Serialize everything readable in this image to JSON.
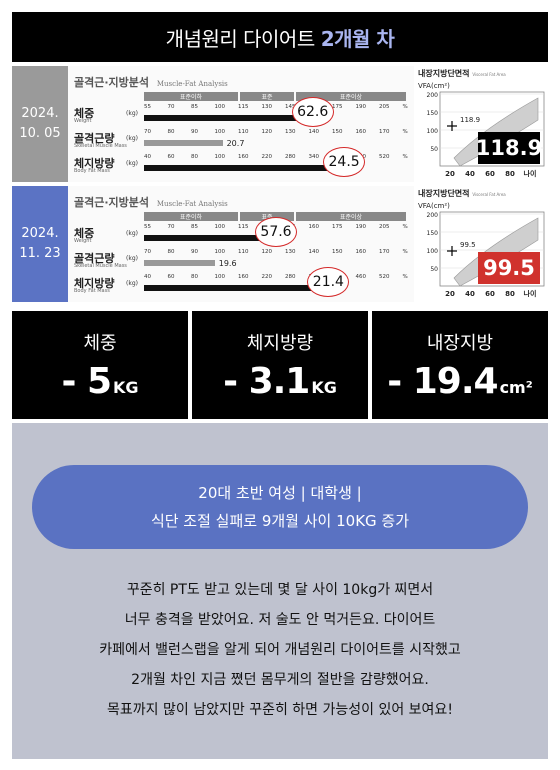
{
  "header": {
    "title": "개념원리 다이어트",
    "highlight": "2개월 차"
  },
  "records": [
    {
      "date_line1": "2024.",
      "date_line2": "10. 05",
      "title": "골격근·지방분석",
      "title_sub": "Muscle-Fat Analysis",
      "bands": [
        "표준이하",
        "표준",
        "표준이상"
      ],
      "metrics": [
        {
          "label": "체중",
          "sub": "Weight",
          "unit": "(kg)",
          "ticks": [
            "55",
            "70",
            "85",
            "100",
            "115",
            "130",
            "145",
            "160",
            "175",
            "190",
            "205",
            "%"
          ],
          "value": "62.6",
          "fill": 0.64,
          "circled": true
        },
        {
          "label": "골격근량",
          "sub": "Skeletal Muscle Mass",
          "unit": "(kg)",
          "ticks": [
            "70",
            "80",
            "90",
            "100",
            "110",
            "120",
            "130",
            "140",
            "150",
            "160",
            "170",
            "%"
          ],
          "value": "20.7",
          "fill": 0.3,
          "circled": false
        },
        {
          "label": "체지방량",
          "sub": "Body Fat Mass",
          "unit": "(kg)",
          "ticks": [
            "40",
            "60",
            "80",
            "100",
            "160",
            "220",
            "280",
            "340",
            "400",
            "460",
            "520",
            "%"
          ],
          "value": "24.5",
          "fill": 0.76,
          "circled": true
        }
      ],
      "vfa": {
        "title": "내장지방단면적",
        "title_sub": "Visceral Fat Area",
        "axis_label": "VFA(cm²)",
        "yticks": [
          "200",
          "150",
          "100",
          "50"
        ],
        "xticks": [
          "20",
          "40",
          "60",
          "80",
          "나이"
        ],
        "marker_label": "118.9",
        "badge": "118.9"
      }
    },
    {
      "date_line1": "2024.",
      "date_line2": "11. 23",
      "title": "골격근·지방분석",
      "title_sub": "Muscle-Fat Analysis",
      "bands": [
        "표준이하",
        "표준",
        "표준이상"
      ],
      "metrics": [
        {
          "label": "체중",
          "sub": "Weight",
          "unit": "(kg)",
          "ticks": [
            "55",
            "70",
            "85",
            "100",
            "115",
            "130",
            "145",
            "160",
            "175",
            "190",
            "205",
            "%"
          ],
          "value": "57.6",
          "fill": 0.5,
          "circled": true
        },
        {
          "label": "골격근량",
          "sub": "Skeletal Muscle Mass",
          "unit": "(kg)",
          "ticks": [
            "70",
            "80",
            "90",
            "100",
            "110",
            "120",
            "130",
            "140",
            "150",
            "160",
            "170",
            "%"
          ],
          "value": "19.6",
          "fill": 0.27,
          "circled": false
        },
        {
          "label": "체지방량",
          "sub": "Body Fat Mass",
          "unit": "(kg)",
          "ticks": [
            "40",
            "60",
            "80",
            "100",
            "160",
            "220",
            "280",
            "340",
            "400",
            "460",
            "520",
            "%"
          ],
          "value": "21.4",
          "fill": 0.7,
          "circled": true
        }
      ],
      "vfa": {
        "title": "내장지방단면적",
        "title_sub": "Visceral Fat Area",
        "axis_label": "VFA(cm²)",
        "yticks": [
          "200",
          "150",
          "100",
          "50"
        ],
        "xticks": [
          "20",
          "40",
          "60",
          "80",
          "나이"
        ],
        "marker_label": "99.5",
        "badge": "99.5"
      }
    }
  ],
  "stats": [
    {
      "label": "체중",
      "value": "- 5",
      "unit": "KG"
    },
    {
      "label": "체지방량",
      "value": "- 3.1",
      "unit": "KG"
    },
    {
      "label": "내장지방",
      "value": "- 19.4",
      "unit": "cm²"
    }
  ],
  "profile": {
    "line1": "20대 초반 여성 | 대학생 |",
    "line2": "식단 조절 실패로 9개월 사이 10KG 증가"
  },
  "story": [
    "꾸준히 PT도 받고 있는데 몇 달 사이 10kg가 찌면서",
    "너무 충격을 받았어요. 저 술도 안 먹거든요. 다이어트",
    "카페에서 밸런스랩을 알게 되어 개념원리 다이어트를 시작했고",
    "2개월 차인 지금 쪘던 몸무게의 절반을 감량했어요.",
    "목표까지 많이 남았지만 꾸준히 하면 가능성이 있어 보여요!"
  ],
  "colors": {
    "accent": "#5a72c2",
    "highlight": "#a9b5f0",
    "alert": "#d0322d"
  }
}
